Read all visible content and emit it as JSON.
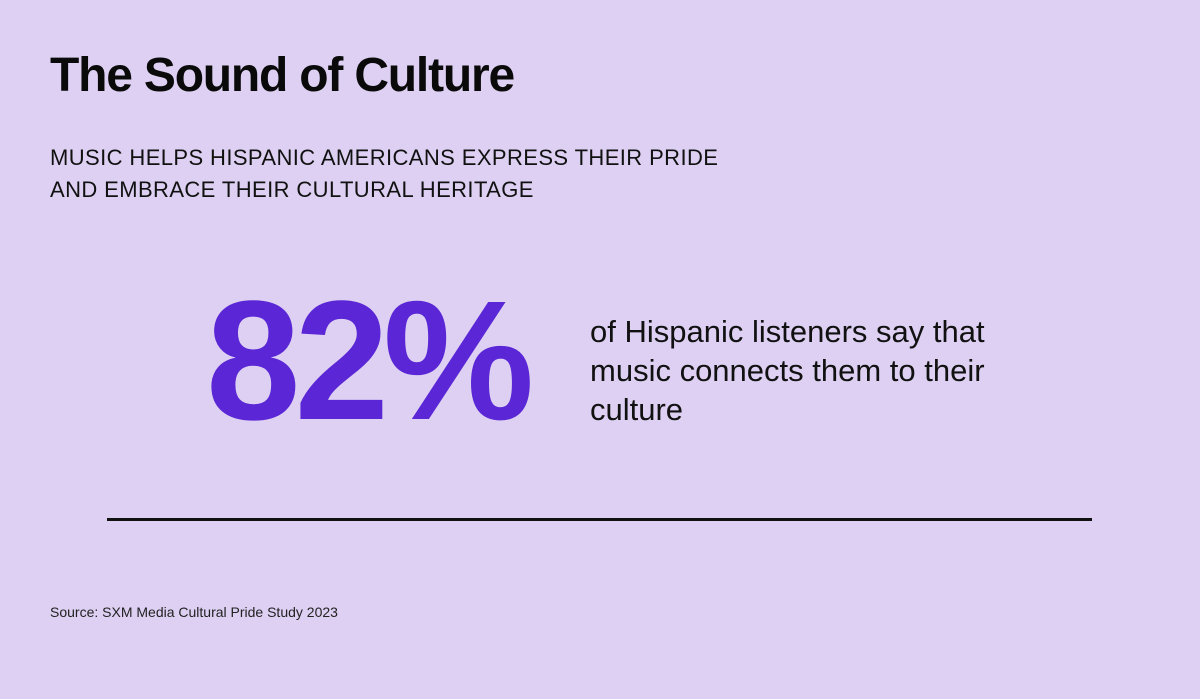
{
  "infographic": {
    "title": "The Sound of Culture",
    "subtitle": "MUSIC HELPS HISPANIC AMERICANS EXPRESS THEIR PRIDE AND EMBRACE THEIR CULTURAL HERITAGE",
    "stat": {
      "value": "82%",
      "description": "of Hispanic listeners say that music connects them to their culture"
    },
    "source": "Source: SXM Media Cultural Pride Study 2023"
  },
  "colors": {
    "background": "#ddd0f2",
    "accent": "#5a26d6",
    "text": "#111111"
  }
}
